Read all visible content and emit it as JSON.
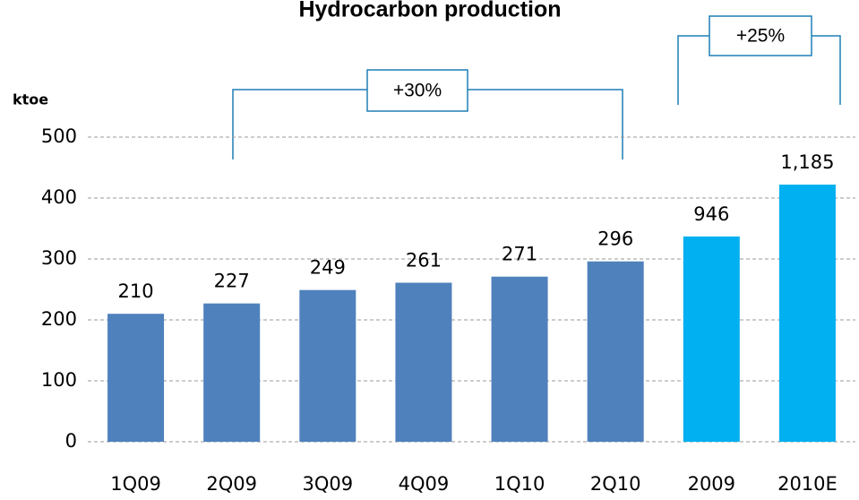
{
  "chart_data": {
    "type": "bar",
    "title": "Hydrocarbon production",
    "ylabel": "ktoe",
    "categories": [
      "1Q09",
      "2Q09",
      "3Q09",
      "4Q09",
      "1Q10",
      "2Q10",
      "2009",
      "2010E"
    ],
    "series": [
      {
        "color": "#4f81bd",
        "values": [
          210,
          227,
          249,
          261,
          271,
          296,
          null,
          null
        ]
      },
      {
        "color": "#00b0f0",
        "axis": "y2",
        "values": [
          null,
          null,
          null,
          null,
          null,
          null,
          946,
          1185
        ],
        "value_labels": [
          null,
          null,
          null,
          null,
          null,
          null,
          "946",
          "1,185"
        ]
      }
    ],
    "ylim": [
      0,
      500
    ],
    "yticks": [
      0,
      100,
      200,
      300,
      400,
      500
    ],
    "y2lim": [
      0,
      1404
    ],
    "grid": true,
    "annotations": [
      {
        "text": "+30%"
      },
      {
        "text": "+25%"
      }
    ]
  }
}
